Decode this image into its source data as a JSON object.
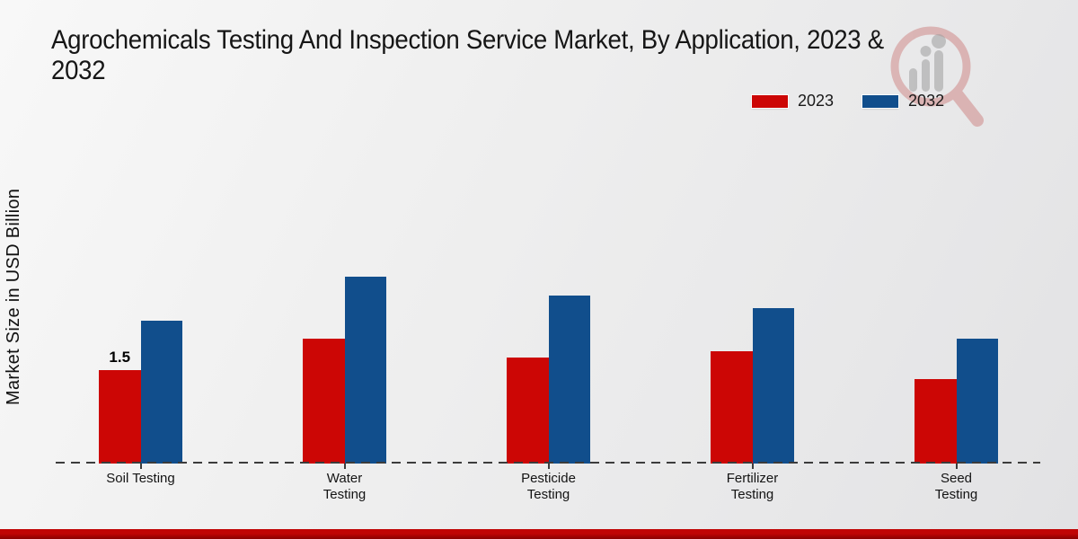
{
  "header": {
    "title_display": "Agrochemicals Testing And Inspection Service Market, By Application, 2023 &\n2032"
  },
  "watermark": {
    "name": "market-research-magnifier-logo"
  },
  "footer": {
    "bar_color": "#c00404",
    "bar_color_dark": "#8a0000"
  },
  "chart_data": {
    "type": "bar",
    "title": "Agrochemicals Testing And Inspection Service Market, By Application, 2023 & 2032",
    "xlabel": "",
    "ylabel": "Market Size in USD Billion",
    "categories": [
      "Soil Testing",
      "Water Testing",
      "Pesticide Testing",
      "Fertilizer Testing",
      "Seed Testing"
    ],
    "series": [
      {
        "name": "2023",
        "color": "#cc0605",
        "values": [
          1.5,
          2.0,
          1.7,
          1.8,
          1.35
        ]
      },
      {
        "name": "2032",
        "color": "#114e8c",
        "values": [
          2.3,
          3.0,
          2.7,
          2.5,
          2.0
        ]
      }
    ],
    "annotations": [
      {
        "category": "Soil Testing",
        "series": "2023",
        "text": "1.5"
      }
    ],
    "ylim": [
      0,
      5.3
    ],
    "grid": false,
    "y_axis_tick_labels": false,
    "legend_position": "top-right",
    "baseline_style": "dashed"
  }
}
